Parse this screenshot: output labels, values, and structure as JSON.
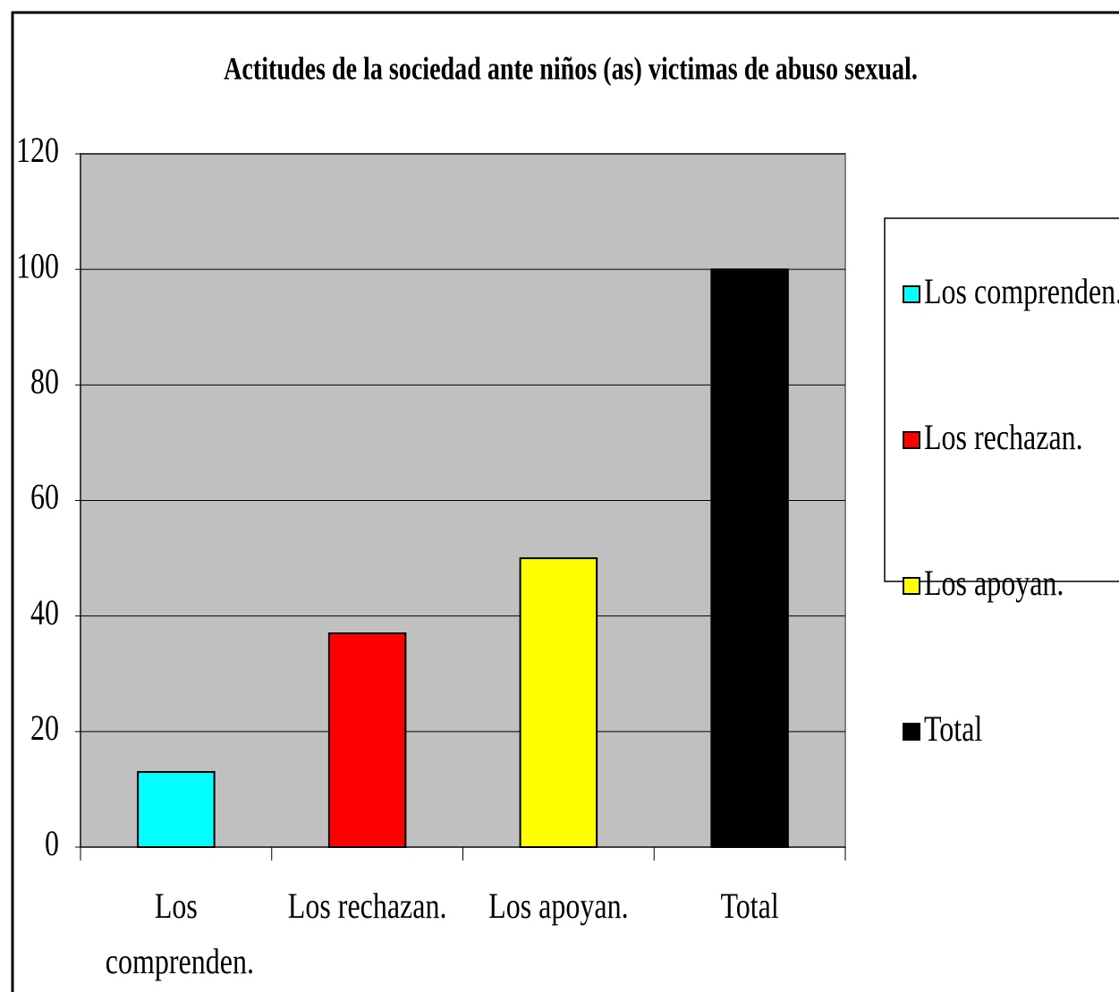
{
  "chart_data": {
    "type": "bar",
    "title": "Actitudes de la sociedad ante niños (as) victimas de abuso sexual.",
    "categories": [
      "Los comprenden.",
      "Los rechazan.",
      "Los apoyan.",
      "Total"
    ],
    "values": [
      13,
      37,
      50,
      100
    ],
    "colors": [
      "#00ffff",
      "#ff0000",
      "#ffff00",
      "#000000"
    ],
    "ylim": [
      0,
      120
    ],
    "yticks": [
      0,
      20,
      40,
      60,
      80,
      100,
      120
    ],
    "grid": true,
    "legend": "right"
  }
}
